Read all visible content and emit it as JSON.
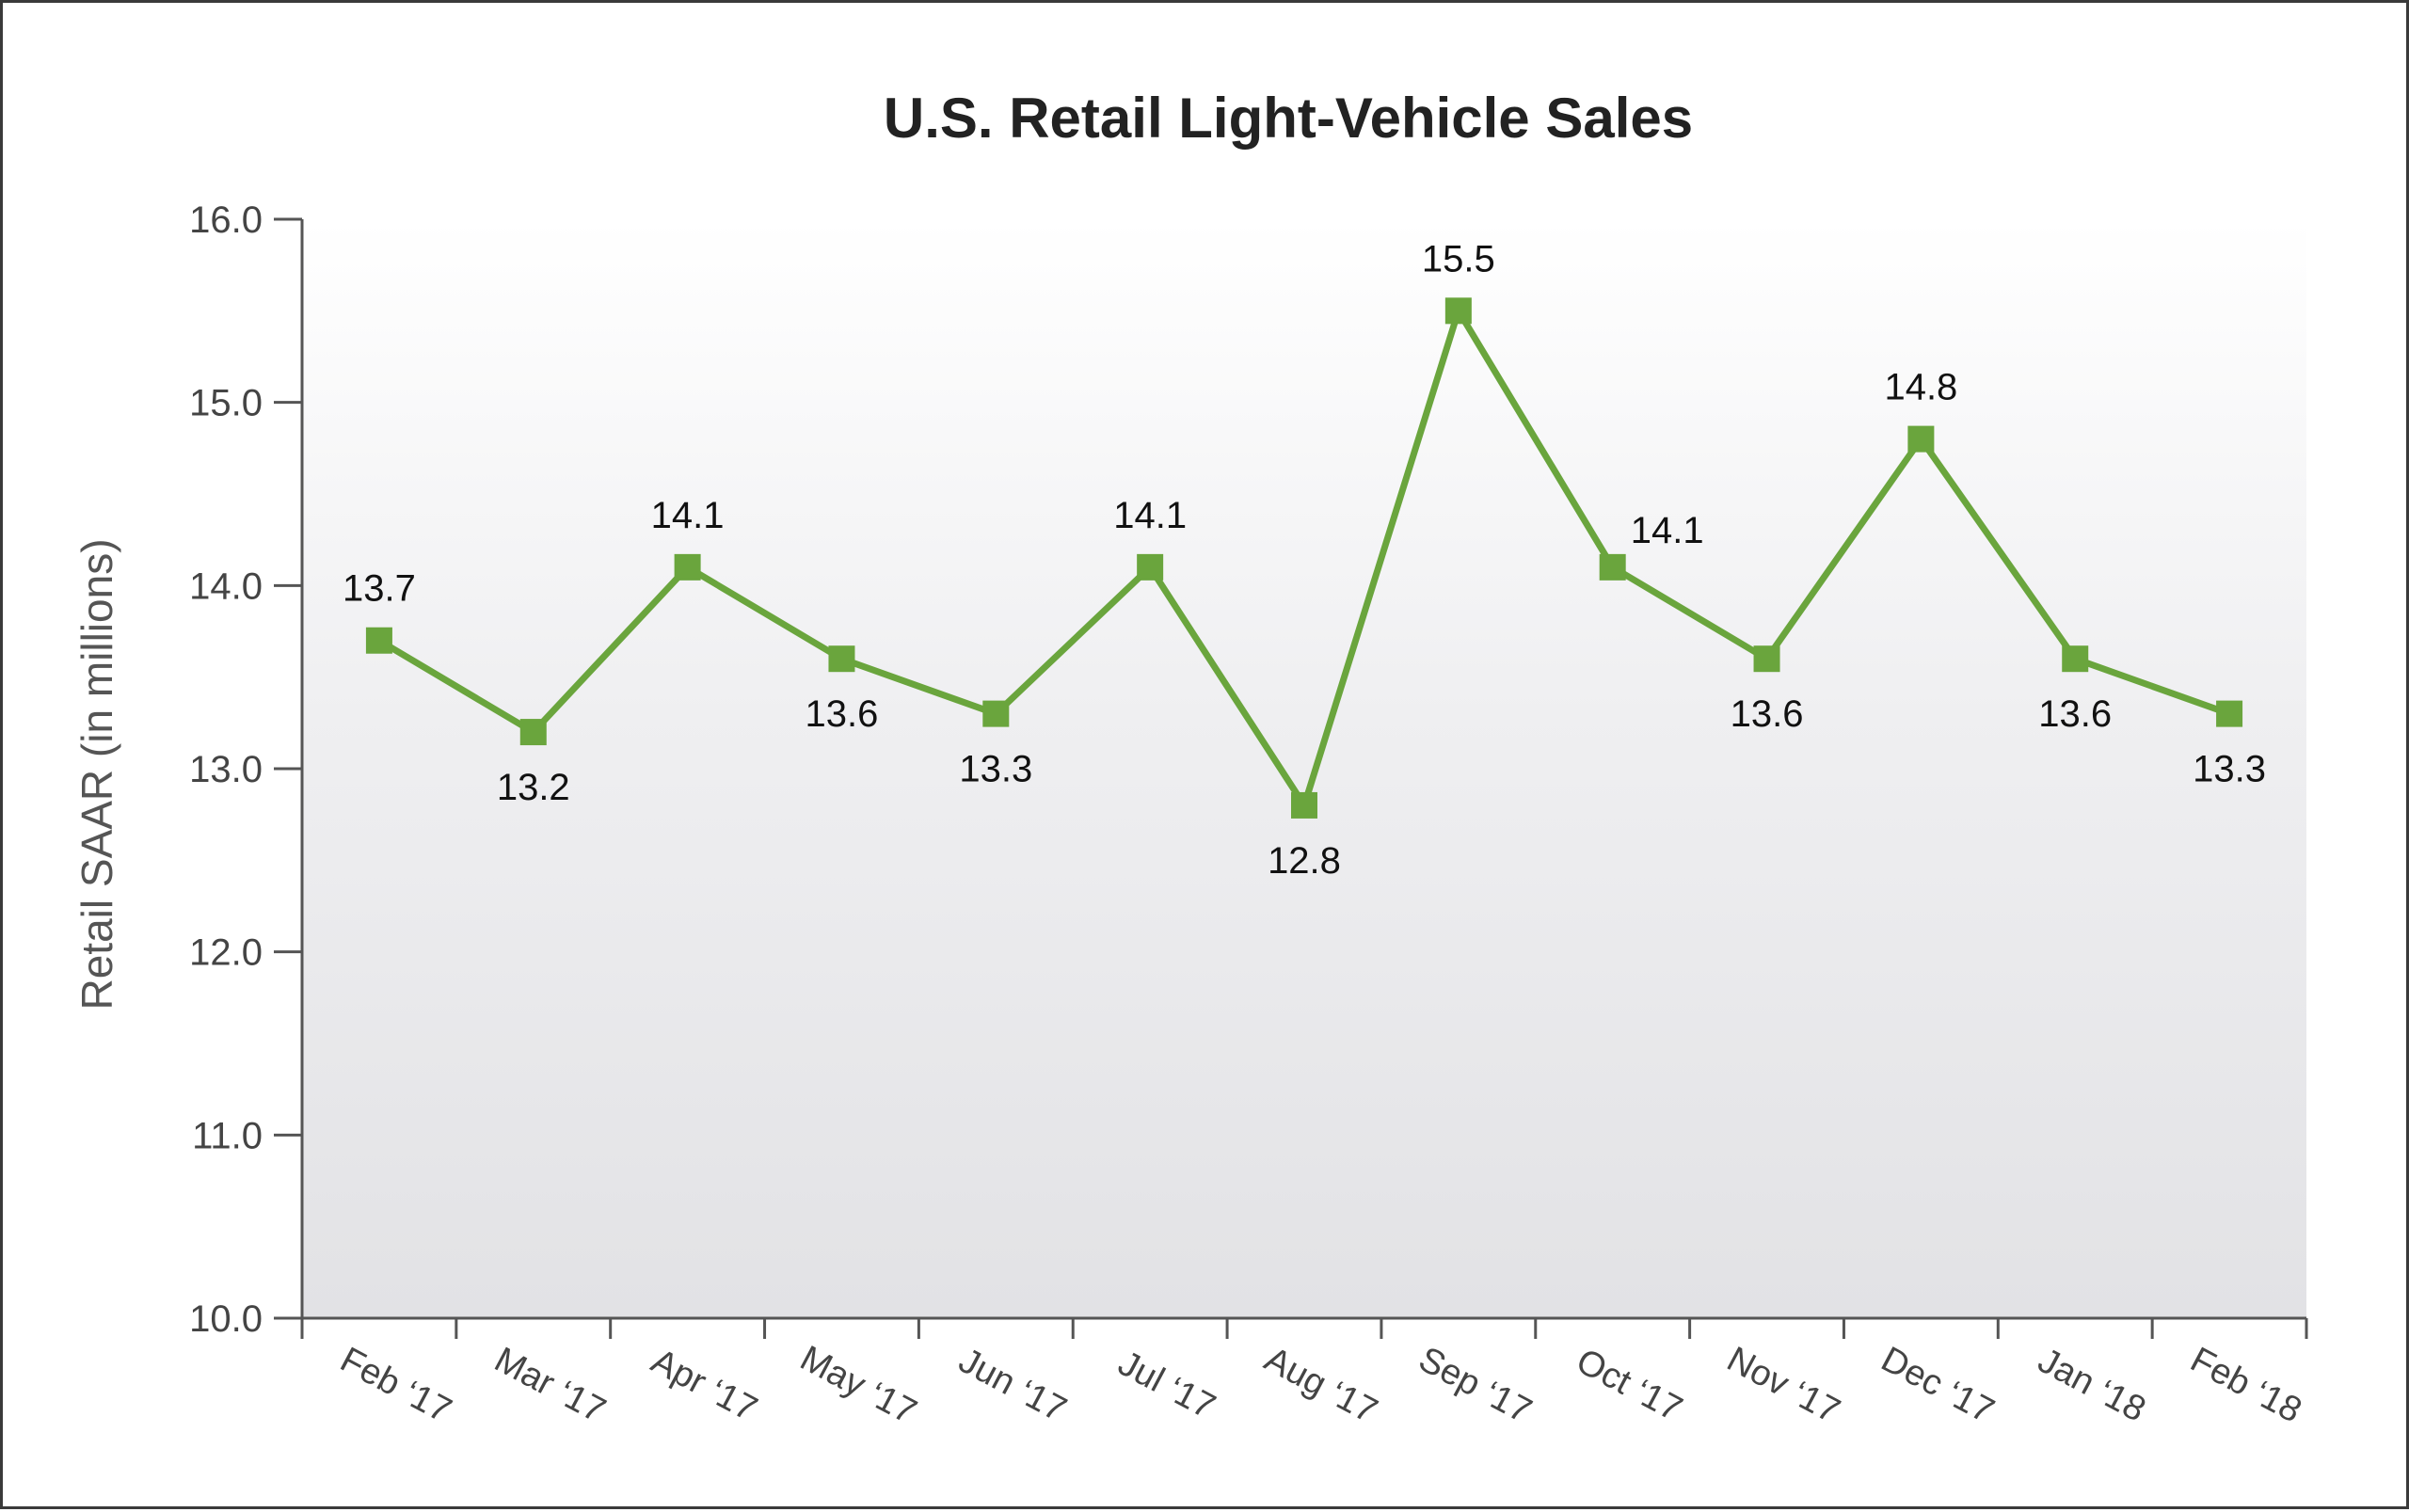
{
  "chart_data": {
    "type": "line",
    "title": "U.S. Retail Light-Vehicle Sales",
    "xlabel": "",
    "ylabel": "Retail SAAR (in millions)",
    "ylim": [
      10.0,
      16.0
    ],
    "yticks": [
      "10.0",
      "11.0",
      "12.0",
      "13.0",
      "14.0",
      "15.0",
      "16.0"
    ],
    "categories": [
      "Feb ‘17",
      "Mar ‘17",
      "Apr ‘17",
      "May ‘17",
      "Jun ‘17",
      "Jul ‘17",
      "Aug ‘17",
      "Sep ‘17",
      "Oct ‘17",
      "Nov ‘17",
      "Dec ‘17",
      "Jan ‘18",
      "Feb ‘18"
    ],
    "series": [
      {
        "values": [
          13.7,
          13.2,
          14.1,
          13.6,
          13.3,
          14.1,
          12.8,
          15.5,
          14.1,
          13.6,
          14.8,
          13.6,
          13.3
        ],
        "labels": [
          "13.7",
          "13.2",
          "14.1",
          "13.6",
          "13.3",
          "14.1",
          "12.8",
          "15.5",
          "14.1",
          "13.6",
          "14.8",
          "13.6",
          "13.3"
        ],
        "label_position": [
          "above",
          "below",
          "above",
          "below",
          "below",
          "above",
          "below",
          "above",
          "above-right",
          "below",
          "above",
          "below",
          "below"
        ]
      }
    ],
    "grid": false,
    "legend": "none",
    "line_color": "#6aa53d",
    "marker_color": "#6aa53d",
    "plot_background": "gradient white to light gray"
  }
}
